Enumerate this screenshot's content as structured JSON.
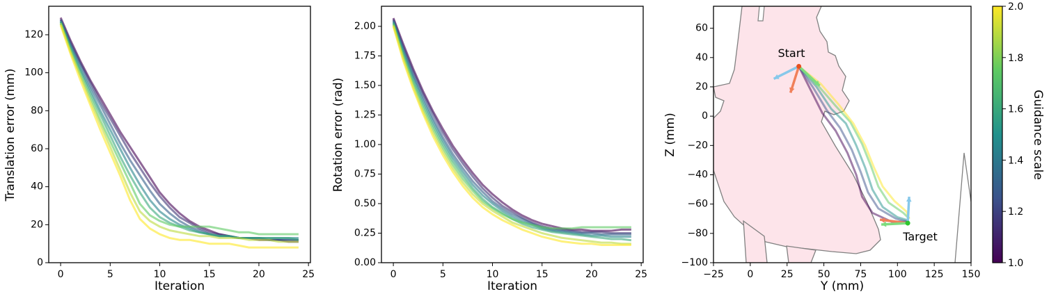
{
  "chart_data": [
    {
      "type": "line",
      "title": "",
      "xlabel": "Iteration",
      "ylabel": "Translation error (mm)",
      "xlim": [
        -1.2,
        25.2
      ],
      "ylim": [
        0,
        135
      ],
      "xticks": [
        0,
        5,
        10,
        15,
        20,
        25
      ],
      "yticks": [
        0,
        20,
        40,
        60,
        80,
        100,
        120
      ],
      "grid": false,
      "x": [
        0,
        1,
        2,
        3,
        4,
        5,
        6,
        7,
        8,
        9,
        10,
        11,
        12,
        13,
        14,
        15,
        16,
        17,
        18,
        19,
        20,
        21,
        22,
        23,
        24
      ],
      "series": [
        {
          "guidance_scale": 1.0,
          "values": [
            129,
            117,
            106,
            96,
            87,
            78,
            69,
            61,
            53,
            45,
            37,
            31,
            26,
            22,
            19,
            17,
            15,
            14,
            13,
            13,
            12,
            12,
            12,
            11,
            11
          ]
        },
        {
          "guidance_scale": 1.15,
          "values": [
            128,
            116,
            105,
            95,
            85,
            76,
            67,
            58,
            50,
            42,
            35,
            29,
            24,
            21,
            18,
            16,
            15,
            14,
            13,
            13,
            13,
            12,
            12,
            12,
            12
          ]
        },
        {
          "guidance_scale": 1.3,
          "values": [
            128,
            115,
            104,
            93,
            83,
            73,
            63,
            54,
            46,
            38,
            31,
            26,
            22,
            19,
            17,
            15,
            14,
            14,
            13,
            13,
            13,
            12,
            12,
            12,
            12
          ]
        },
        {
          "guidance_scale": 1.45,
          "values": [
            127,
            114,
            102,
            91,
            80,
            70,
            60,
            50,
            41,
            33,
            27,
            23,
            20,
            18,
            16,
            15,
            14,
            14,
            13,
            13,
            13,
            13,
            13,
            13,
            13
          ]
        },
        {
          "guidance_scale": 1.6,
          "values": [
            127,
            113,
            101,
            89,
            78,
            67,
            56,
            46,
            37,
            29,
            24,
            21,
            19,
            17,
            16,
            15,
            14,
            14,
            13,
            13,
            13,
            13,
            13,
            13,
            12
          ]
        },
        {
          "guidance_scale": 1.75,
          "values": [
            126,
            112,
            99,
            87,
            75,
            64,
            53,
            42,
            31,
            25,
            22,
            20,
            19,
            19,
            19,
            19,
            18,
            17,
            16,
            16,
            15,
            15,
            15,
            15,
            15
          ]
        },
        {
          "guidance_scale": 1.9,
          "values": [
            126,
            111,
            98,
            85,
            73,
            61,
            49,
            37,
            27,
            22,
            19,
            17,
            16,
            15,
            14,
            14,
            13,
            13,
            13,
            12,
            12,
            12,
            11,
            11,
            11
          ]
        },
        {
          "guidance_scale": 2.0,
          "values": [
            125,
            110,
            96,
            83,
            70,
            58,
            46,
            33,
            23,
            18,
            15,
            13,
            12,
            12,
            11,
            10,
            10,
            10,
            9,
            8,
            8,
            8,
            8,
            8,
            8
          ]
        }
      ]
    },
    {
      "type": "line",
      "title": "",
      "xlabel": "Iteration",
      "ylabel": "Rotation error (rad)",
      "xlim": [
        -1.2,
        25.2
      ],
      "ylim": [
        0,
        2.17
      ],
      "xticks": [
        0,
        5,
        10,
        15,
        20,
        25
      ],
      "yticks": [
        "0.00",
        "0.25",
        "0.50",
        "0.75",
        "1.00",
        "1.25",
        "1.50",
        "1.75",
        "2.00"
      ],
      "grid": false,
      "x": [
        0,
        1,
        2,
        3,
        4,
        5,
        6,
        7,
        8,
        9,
        10,
        11,
        12,
        13,
        14,
        15,
        16,
        17,
        18,
        19,
        20,
        21,
        22,
        23,
        24
      ],
      "series": [
        {
          "guidance_scale": 1.0,
          "values": [
            2.07,
            1.85,
            1.64,
            1.45,
            1.28,
            1.13,
            0.99,
            0.87,
            0.76,
            0.66,
            0.58,
            0.51,
            0.45,
            0.4,
            0.36,
            0.33,
            0.31,
            0.29,
            0.28,
            0.28,
            0.27,
            0.27,
            0.27,
            0.28,
            0.28
          ]
        },
        {
          "guidance_scale": 1.15,
          "values": [
            2.06,
            1.83,
            1.62,
            1.43,
            1.26,
            1.1,
            0.96,
            0.84,
            0.73,
            0.63,
            0.55,
            0.48,
            0.43,
            0.38,
            0.34,
            0.31,
            0.29,
            0.28,
            0.27,
            0.26,
            0.26,
            0.26,
            0.25,
            0.25,
            0.25
          ]
        },
        {
          "guidance_scale": 1.3,
          "values": [
            2.05,
            1.81,
            1.59,
            1.4,
            1.22,
            1.06,
            0.92,
            0.8,
            0.69,
            0.6,
            0.52,
            0.46,
            0.41,
            0.37,
            0.33,
            0.3,
            0.28,
            0.27,
            0.26,
            0.25,
            0.25,
            0.24,
            0.24,
            0.24,
            0.24
          ]
        },
        {
          "guidance_scale": 1.45,
          "values": [
            2.04,
            1.79,
            1.57,
            1.37,
            1.19,
            1.03,
            0.89,
            0.77,
            0.66,
            0.57,
            0.5,
            0.44,
            0.39,
            0.35,
            0.32,
            0.29,
            0.27,
            0.26,
            0.25,
            0.24,
            0.23,
            0.23,
            0.22,
            0.22,
            0.22
          ]
        },
        {
          "guidance_scale": 1.6,
          "values": [
            2.03,
            1.77,
            1.54,
            1.34,
            1.16,
            1.0,
            0.86,
            0.74,
            0.63,
            0.54,
            0.47,
            0.42,
            0.37,
            0.33,
            0.3,
            0.28,
            0.26,
            0.25,
            0.24,
            0.23,
            0.22,
            0.21,
            0.2,
            0.2,
            0.19
          ]
        },
        {
          "guidance_scale": 1.75,
          "values": [
            2.02,
            1.75,
            1.52,
            1.31,
            1.13,
            0.97,
            0.83,
            0.71,
            0.61,
            0.52,
            0.46,
            0.41,
            0.37,
            0.34,
            0.32,
            0.3,
            0.29,
            0.29,
            0.29,
            0.3,
            0.3,
            0.3,
            0.3,
            0.3,
            0.3
          ]
        },
        {
          "guidance_scale": 1.9,
          "values": [
            2.01,
            1.73,
            1.49,
            1.28,
            1.1,
            0.94,
            0.8,
            0.68,
            0.58,
            0.5,
            0.44,
            0.39,
            0.34,
            0.31,
            0.28,
            0.25,
            0.23,
            0.21,
            0.2,
            0.19,
            0.18,
            0.17,
            0.17,
            0.16,
            0.16
          ]
        },
        {
          "guidance_scale": 2.0,
          "values": [
            2.0,
            1.71,
            1.47,
            1.26,
            1.07,
            0.91,
            0.77,
            0.65,
            0.55,
            0.47,
            0.41,
            0.36,
            0.32,
            0.28,
            0.25,
            0.22,
            0.2,
            0.18,
            0.17,
            0.16,
            0.16,
            0.15,
            0.15,
            0.15,
            0.15
          ]
        }
      ]
    },
    {
      "type": "line",
      "title": "",
      "xlabel": "Y (mm)",
      "ylabel": "Z (mm)",
      "xlim": [
        -25,
        150
      ],
      "ylim": [
        -100,
        75
      ],
      "xticks": [
        "−25",
        "0",
        "25",
        "50",
        "75",
        "100",
        "125",
        "150"
      ],
      "xtick_values": [
        -25,
        0,
        25,
        50,
        75,
        100,
        125,
        150
      ],
      "yticks": [
        "−100",
        "−80",
        "−60",
        "−40",
        "−20",
        "0",
        "20",
        "40",
        "60"
      ],
      "ytick_values": [
        -100,
        -80,
        -60,
        -40,
        -20,
        0,
        20,
        40,
        60
      ],
      "grid": false,
      "annotations": [
        {
          "text": "Start",
          "at": [
            33,
            34
          ]
        },
        {
          "text": "Target",
          "at": [
            107,
            -73
          ]
        }
      ],
      "start_point": [
        33,
        34
      ],
      "target_point": [
        107,
        -73
      ],
      "trajectories": [
        {
          "guidance_scale": 1.0,
          "points": [
            [
              33,
              34
            ],
            [
              41,
              18
            ],
            [
              49,
              2
            ],
            [
              58,
              -10
            ],
            [
              66,
              -25
            ],
            [
              72,
              -40
            ],
            [
              76,
              -55
            ],
            [
              83,
              -66
            ],
            [
              96,
              -72
            ],
            [
              107,
              -72
            ]
          ]
        },
        {
          "guidance_scale": 1.25,
          "points": [
            [
              33,
              34
            ],
            [
              43,
              19
            ],
            [
              52,
              4
            ],
            [
              61,
              -8
            ],
            [
              69,
              -23
            ],
            [
              75,
              -38
            ],
            [
              80,
              -52
            ],
            [
              87,
              -63
            ],
            [
              99,
              -70
            ],
            [
              107,
              -72
            ]
          ]
        },
        {
          "guidance_scale": 1.5,
          "points": [
            [
              33,
              34
            ],
            [
              45,
              20
            ],
            [
              55,
              5
            ],
            [
              65,
              -5
            ],
            [
              72,
              -20
            ],
            [
              78,
              -35
            ],
            [
              83,
              -50
            ],
            [
              90,
              -62
            ],
            [
              100,
              -69
            ],
            [
              107,
              -71
            ]
          ]
        },
        {
          "guidance_scale": 1.75,
          "points": [
            [
              33,
              34
            ],
            [
              46,
              21
            ],
            [
              58,
              7
            ],
            [
              68,
              -4
            ],
            [
              76,
              -19
            ],
            [
              82,
              -34
            ],
            [
              87,
              -48
            ],
            [
              94,
              -59
            ],
            [
              104,
              -66
            ],
            [
              108,
              -70
            ]
          ]
        },
        {
          "guidance_scale": 2.0,
          "points": [
            [
              33,
              34
            ],
            [
              48,
              22
            ],
            [
              60,
              8
            ],
            [
              70,
              -5
            ],
            [
              78,
              -20
            ],
            [
              84,
              -35
            ],
            [
              90,
              -48
            ],
            [
              98,
              -58
            ],
            [
              106,
              -65
            ],
            [
              108,
              -70
            ]
          ]
        }
      ],
      "colorbar": {
        "label": "Guidance scale",
        "range": [
          1.0,
          2.0
        ],
        "ticks": [
          "1.0",
          "1.2",
          "1.4",
          "1.6",
          "1.8",
          "2.0"
        ],
        "tick_values": [
          1.0,
          1.2,
          1.4,
          1.6,
          1.8,
          2.0
        ],
        "colormap": "viridis"
      }
    }
  ],
  "colors": {
    "heart_fill": "#fde4ea",
    "heart_outline": "#808080",
    "frame_arrow_orange": "#f0805a",
    "frame_arrow_blue": "#87c8ea",
    "frame_arrow_green": "#7fdc7f"
  }
}
